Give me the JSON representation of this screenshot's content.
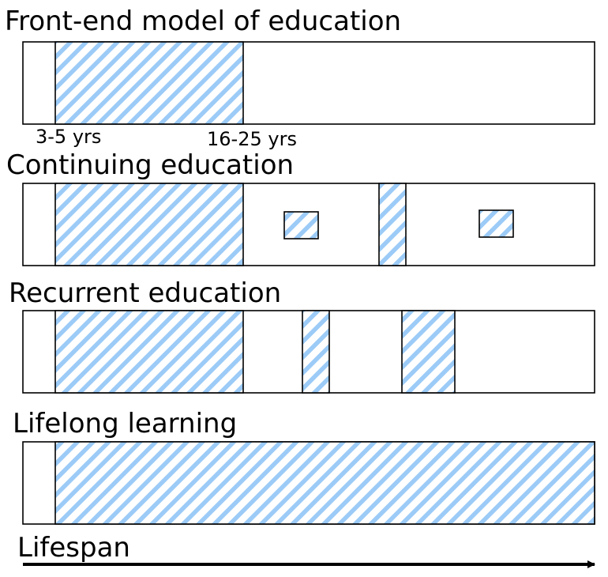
{
  "rows": [
    {
      "title": "Front-end model of education",
      "labels": [
        "3-5 yrs",
        "16-25 yrs"
      ]
    },
    {
      "title": "Continuing education"
    },
    {
      "title": "Recurrent education"
    },
    {
      "title": "Lifelong learning"
    }
  ],
  "axis": {
    "label": "Lifespan"
  },
  "colors": {
    "hatch": "#9ccbf7",
    "outline": "#000000",
    "background": "#ffffff"
  }
}
